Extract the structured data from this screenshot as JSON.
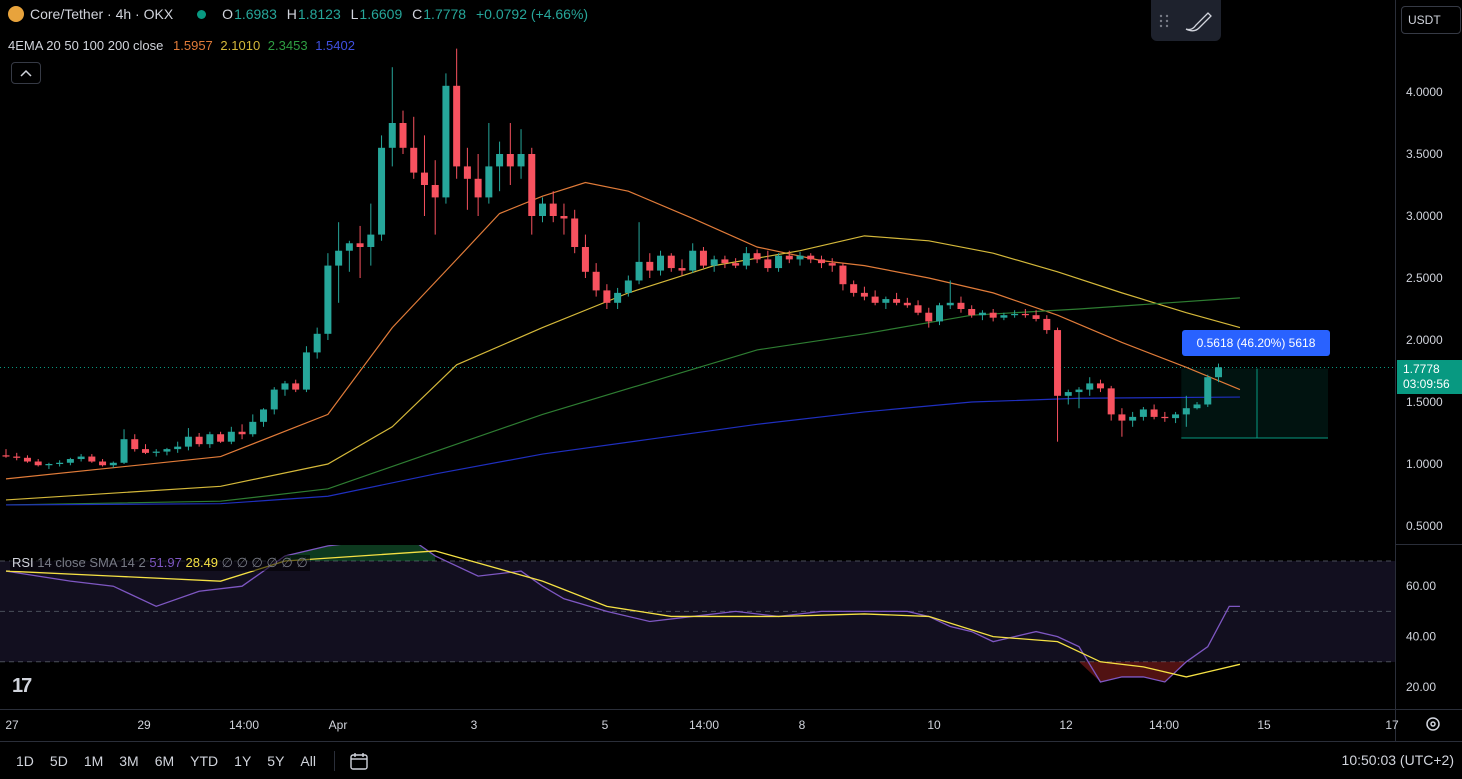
{
  "header": {
    "symbol": "Core/Tether · 4h · OKX",
    "ohlc": [
      {
        "label": "O",
        "value": "1.6983"
      },
      {
        "label": "H",
        "value": "1.8123"
      },
      {
        "label": "L",
        "value": "1.6609"
      },
      {
        "label": "C",
        "value": "1.7778"
      },
      {
        "label": "",
        "value": "+0.0792 (+4.66%)"
      }
    ],
    "indicator_name": "4EMA 20 50 100 200 close",
    "ema_values": [
      "1.5957",
      "2.1010",
      "2.3453",
      "1.5402"
    ],
    "collapse_icon": "chevron-up-icon",
    "currency": "USDT"
  },
  "measure_label": "0.5618 (46.20%) 5618",
  "last_price": {
    "value": "1.7778",
    "countdown": "03:09:56"
  },
  "rsi_legend": {
    "name": "RSI",
    "params": "14 close SMA 14 2",
    "rsi_value": "51.97",
    "ma_value": "28.49",
    "placeholders": "∅ ∅ ∅ ∅ ∅ ∅"
  },
  "bottom_bar": {
    "ranges": [
      "1D",
      "5D",
      "1M",
      "3M",
      "6M",
      "YTD",
      "1Y",
      "5Y",
      "All"
    ],
    "calendar_icon": "calendar-icon",
    "time": "10:50:03 (UTC+2)"
  },
  "colors": {
    "up": "#26a69a",
    "down": "#f7525f",
    "ema20": "#e07b39",
    "ema50": "#d4b83a",
    "ema100": "#2e7d32",
    "ema200": "#1f2fbf",
    "rsi": "#7e57c2",
    "rsi_ma": "#f5e144"
  },
  "chart_data": [
    {
      "type": "candlestick",
      "title": "Core/Tether · 4h · OKX",
      "y_ticks": [
        "4.0000",
        "3.5000",
        "3.0000",
        "2.5000",
        "2.0000",
        "1.5000",
        "1.0000",
        "0.5000"
      ],
      "x_ticks": [
        "27",
        "29",
        "14:00",
        "Apr",
        "3",
        "5",
        "14:00",
        "8",
        "10",
        "12",
        "14:00",
        "15",
        "17"
      ],
      "ylim": [
        0.2,
        4.6
      ],
      "candles": [
        [
          1.07,
          1.12,
          1.05,
          1.06
        ],
        [
          1.06,
          1.09,
          1.03,
          1.05
        ],
        [
          1.05,
          1.07,
          1.01,
          1.02
        ],
        [
          1.02,
          1.04,
          0.98,
          0.99
        ],
        [
          0.99,
          1.01,
          0.96,
          1.0
        ],
        [
          1.0,
          1.03,
          0.98,
          1.01
        ],
        [
          1.01,
          1.05,
          0.99,
          1.04
        ],
        [
          1.04,
          1.08,
          1.02,
          1.06
        ],
        [
          1.06,
          1.08,
          1.01,
          1.02
        ],
        [
          1.02,
          1.04,
          0.98,
          0.99
        ],
        [
          0.99,
          1.02,
          0.97,
          1.01
        ],
        [
          1.01,
          1.28,
          1.0,
          1.2
        ],
        [
          1.2,
          1.24,
          1.1,
          1.12
        ],
        [
          1.12,
          1.16,
          1.08,
          1.09
        ],
        [
          1.09,
          1.12,
          1.06,
          1.1
        ],
        [
          1.1,
          1.13,
          1.07,
          1.12
        ],
        [
          1.12,
          1.18,
          1.09,
          1.14
        ],
        [
          1.14,
          1.29,
          1.11,
          1.22
        ],
        [
          1.22,
          1.25,
          1.14,
          1.16
        ],
        [
          1.16,
          1.26,
          1.13,
          1.24
        ],
        [
          1.24,
          1.26,
          1.17,
          1.18
        ],
        [
          1.18,
          1.3,
          1.16,
          1.26
        ],
        [
          1.26,
          1.32,
          1.2,
          1.24
        ],
        [
          1.24,
          1.4,
          1.22,
          1.34
        ],
        [
          1.34,
          1.45,
          1.3,
          1.44
        ],
        [
          1.44,
          1.62,
          1.4,
          1.6
        ],
        [
          1.6,
          1.67,
          1.55,
          1.65
        ],
        [
          1.65,
          1.68,
          1.58,
          1.6
        ],
        [
          1.6,
          1.95,
          1.58,
          1.9
        ],
        [
          1.9,
          2.1,
          1.85,
          2.05
        ],
        [
          2.05,
          2.7,
          2.0,
          2.6
        ],
        [
          2.6,
          2.95,
          2.3,
          2.72
        ],
        [
          2.72,
          2.8,
          2.55,
          2.78
        ],
        [
          2.78,
          2.92,
          2.5,
          2.75
        ],
        [
          2.75,
          3.1,
          2.6,
          2.85
        ],
        [
          2.85,
          3.65,
          2.8,
          3.55
        ],
        [
          3.55,
          4.2,
          3.4,
          3.75
        ],
        [
          3.75,
          3.85,
          3.5,
          3.55
        ],
        [
          3.55,
          3.8,
          3.3,
          3.35
        ],
        [
          3.35,
          3.65,
          3.0,
          3.25
        ],
        [
          3.25,
          3.45,
          2.85,
          3.15
        ],
        [
          3.15,
          4.15,
          3.1,
          4.05
        ],
        [
          4.05,
          4.35,
          3.3,
          3.4
        ],
        [
          3.4,
          3.55,
          3.05,
          3.3
        ],
        [
          3.3,
          3.5,
          3.0,
          3.15
        ],
        [
          3.15,
          3.75,
          3.1,
          3.4
        ],
        [
          3.4,
          3.6,
          3.2,
          3.5
        ],
        [
          3.5,
          3.75,
          3.25,
          3.4
        ],
        [
          3.4,
          3.7,
          3.3,
          3.5
        ],
        [
          3.5,
          3.55,
          2.85,
          3.0
        ],
        [
          3.0,
          3.15,
          2.95,
          3.1
        ],
        [
          3.1,
          3.2,
          2.95,
          3.0
        ],
        [
          3.0,
          3.1,
          2.85,
          2.98
        ],
        [
          2.98,
          3.05,
          2.7,
          2.75
        ],
        [
          2.75,
          2.85,
          2.5,
          2.55
        ],
        [
          2.55,
          2.62,
          2.35,
          2.4
        ],
        [
          2.4,
          2.45,
          2.25,
          2.3
        ],
        [
          2.3,
          2.42,
          2.25,
          2.38
        ],
        [
          2.38,
          2.52,
          2.35,
          2.48
        ],
        [
          2.48,
          2.95,
          2.45,
          2.63
        ],
        [
          2.63,
          2.7,
          2.5,
          2.56
        ],
        [
          2.56,
          2.72,
          2.52,
          2.68
        ],
        [
          2.68,
          2.7,
          2.55,
          2.58
        ],
        [
          2.58,
          2.65,
          2.52,
          2.56
        ],
        [
          2.56,
          2.78,
          2.54,
          2.72
        ],
        [
          2.72,
          2.75,
          2.58,
          2.6
        ],
        [
          2.6,
          2.68,
          2.55,
          2.65
        ],
        [
          2.65,
          2.68,
          2.58,
          2.62
        ],
        [
          2.62,
          2.66,
          2.58,
          2.6
        ],
        [
          2.6,
          2.75,
          2.57,
          2.7
        ],
        [
          2.7,
          2.73,
          2.62,
          2.65
        ],
        [
          2.65,
          2.72,
          2.55,
          2.58
        ],
        [
          2.58,
          2.7,
          2.55,
          2.68
        ],
        [
          2.68,
          2.72,
          2.62,
          2.65
        ],
        [
          2.65,
          2.71,
          2.6,
          2.68
        ],
        [
          2.68,
          2.7,
          2.62,
          2.65
        ],
        [
          2.65,
          2.68,
          2.58,
          2.62
        ],
        [
          2.62,
          2.66,
          2.55,
          2.6
        ],
        [
          2.6,
          2.62,
          2.4,
          2.45
        ],
        [
          2.45,
          2.48,
          2.35,
          2.38
        ],
        [
          2.38,
          2.43,
          2.32,
          2.35
        ],
        [
          2.35,
          2.4,
          2.28,
          2.3
        ],
        [
          2.3,
          2.35,
          2.25,
          2.33
        ],
        [
          2.33,
          2.38,
          2.28,
          2.3
        ],
        [
          2.3,
          2.34,
          2.26,
          2.28
        ],
        [
          2.28,
          2.32,
          2.2,
          2.22
        ],
        [
          2.22,
          2.26,
          2.1,
          2.15
        ],
        [
          2.15,
          2.3,
          2.12,
          2.28
        ],
        [
          2.28,
          2.48,
          2.25,
          2.3
        ],
        [
          2.3,
          2.35,
          2.22,
          2.25
        ],
        [
          2.25,
          2.28,
          2.18,
          2.2
        ],
        [
          2.2,
          2.24,
          2.16,
          2.22
        ],
        [
          2.22,
          2.25,
          2.15,
          2.18
        ],
        [
          2.18,
          2.22,
          2.16,
          2.2
        ],
        [
          2.2,
          2.24,
          2.18,
          2.21
        ],
        [
          2.21,
          2.25,
          2.18,
          2.2
        ],
        [
          2.2,
          2.24,
          2.15,
          2.17
        ],
        [
          2.17,
          2.2,
          2.05,
          2.08
        ],
        [
          2.08,
          2.1,
          1.18,
          1.55
        ],
        [
          1.55,
          1.6,
          1.48,
          1.58
        ],
        [
          1.58,
          1.62,
          1.45,
          1.6
        ],
        [
          1.6,
          1.7,
          1.55,
          1.65
        ],
        [
          1.65,
          1.68,
          1.58,
          1.61
        ],
        [
          1.61,
          1.63,
          1.35,
          1.4
        ],
        [
          1.4,
          1.45,
          1.22,
          1.35
        ],
        [
          1.35,
          1.42,
          1.3,
          1.38
        ],
        [
          1.38,
          1.46,
          1.35,
          1.44
        ],
        [
          1.44,
          1.48,
          1.36,
          1.38
        ],
        [
          1.38,
          1.42,
          1.34,
          1.37
        ],
        [
          1.37,
          1.42,
          1.33,
          1.4
        ],
        [
          1.4,
          1.55,
          1.3,
          1.45
        ],
        [
          1.45,
          1.5,
          1.44,
          1.48
        ],
        [
          1.48,
          1.72,
          1.46,
          1.7
        ],
        [
          1.7,
          1.81,
          1.66,
          1.78
        ]
      ],
      "ema20": [
        [
          0,
          0.88
        ],
        [
          20,
          1.06
        ],
        [
          30,
          1.4
        ],
        [
          36,
          2.1
        ],
        [
          42,
          2.65
        ],
        [
          46,
          3.02
        ],
        [
          50,
          3.16
        ],
        [
          54,
          3.27
        ],
        [
          58,
          3.2
        ],
        [
          64,
          2.98
        ],
        [
          70,
          2.75
        ],
        [
          76,
          2.64
        ],
        [
          80,
          2.6
        ],
        [
          86,
          2.5
        ],
        [
          92,
          2.38
        ],
        [
          98,
          2.2
        ],
        [
          104,
          1.98
        ],
        [
          110,
          1.78
        ],
        [
          115,
          1.6
        ]
      ],
      "ema50": [
        [
          0,
          0.71
        ],
        [
          20,
          0.82
        ],
        [
          30,
          1.0
        ],
        [
          36,
          1.3
        ],
        [
          42,
          1.8
        ],
        [
          50,
          2.1
        ],
        [
          58,
          2.38
        ],
        [
          66,
          2.6
        ],
        [
          74,
          2.72
        ],
        [
          80,
          2.84
        ],
        [
          86,
          2.8
        ],
        [
          92,
          2.7
        ],
        [
          98,
          2.55
        ],
        [
          104,
          2.38
        ],
        [
          110,
          2.22
        ],
        [
          115,
          2.1
        ]
      ],
      "ema100": [
        [
          0,
          0.67
        ],
        [
          20,
          0.7
        ],
        [
          30,
          0.8
        ],
        [
          40,
          1.1
        ],
        [
          50,
          1.4
        ],
        [
          60,
          1.66
        ],
        [
          70,
          1.92
        ],
        [
          80,
          2.05
        ],
        [
          90,
          2.2
        ],
        [
          100,
          2.25
        ],
        [
          115,
          2.34
        ]
      ],
      "ema200": [
        [
          0,
          0.67
        ],
        [
          20,
          0.68
        ],
        [
          30,
          0.74
        ],
        [
          40,
          0.92
        ],
        [
          50,
          1.08
        ],
        [
          60,
          1.2
        ],
        [
          70,
          1.32
        ],
        [
          80,
          1.42
        ],
        [
          90,
          1.5
        ],
        [
          100,
          1.53
        ],
        [
          115,
          1.54
        ]
      ],
      "measure": {
        "from_price": 1.21,
        "to_price": 1.77,
        "label": "0.5618 (46.20%) 5618"
      }
    },
    {
      "type": "line",
      "title": "RSI 14 close SMA 14 2",
      "y_ticks": [
        "60.00",
        "40.00",
        "20.00"
      ],
      "ylim": [
        12,
        78
      ],
      "bands": [
        70,
        50,
        30
      ],
      "rsi": [
        [
          0,
          66
        ],
        [
          6,
          62
        ],
        [
          10,
          60
        ],
        [
          14,
          52
        ],
        [
          18,
          58
        ],
        [
          22,
          60
        ],
        [
          26,
          72
        ],
        [
          30,
          76
        ],
        [
          34,
          78
        ],
        [
          38,
          78
        ],
        [
          40,
          72
        ],
        [
          44,
          64
        ],
        [
          48,
          66
        ],
        [
          50,
          60
        ],
        [
          52,
          55
        ],
        [
          56,
          50
        ],
        [
          60,
          46
        ],
        [
          64,
          48
        ],
        [
          68,
          50
        ],
        [
          72,
          48
        ],
        [
          76,
          50
        ],
        [
          80,
          50
        ],
        [
          84,
          50
        ],
        [
          86,
          48
        ],
        [
          88,
          44
        ],
        [
          90,
          42
        ],
        [
          92,
          38
        ],
        [
          94,
          40
        ],
        [
          96,
          42
        ],
        [
          98,
          40
        ],
        [
          100,
          36
        ],
        [
          102,
          22
        ],
        [
          104,
          24
        ],
        [
          106,
          24
        ],
        [
          108,
          22
        ],
        [
          110,
          30
        ],
        [
          112,
          36
        ],
        [
          114,
          52
        ],
        [
          115,
          52
        ]
      ],
      "rsi_ma": [
        [
          0,
          66
        ],
        [
          10,
          64
        ],
        [
          20,
          62
        ],
        [
          26,
          70
        ],
        [
          40,
          74
        ],
        [
          50,
          62
        ],
        [
          56,
          52
        ],
        [
          62,
          48
        ],
        [
          72,
          48
        ],
        [
          80,
          49
        ],
        [
          86,
          48
        ],
        [
          92,
          40
        ],
        [
          98,
          38
        ],
        [
          102,
          30
        ],
        [
          106,
          28
        ],
        [
          110,
          24
        ],
        [
          112,
          26
        ],
        [
          115,
          29
        ]
      ]
    }
  ]
}
